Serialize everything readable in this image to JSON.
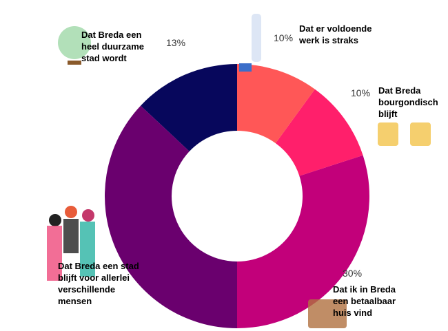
{
  "chart_data": {
    "type": "pie",
    "categories": [
      "Dat er voldoende werk is straks",
      "Dat Breda bourgondisch blijft",
      "Dat ik in Breda een betaalbaar huis vind",
      "Dat Breda een stad blijft voor allerlei verschillende mensen",
      "Dat Breda een heel duurzame stad wordt"
    ],
    "values": [
      10,
      10,
      30,
      37,
      13
    ],
    "value_labels": [
      "10%",
      "10%",
      "30%",
      null,
      "13%"
    ],
    "colors": [
      "#ff5757",
      "#ff1f6b",
      "#c2007a",
      "#6a006e",
      "#07075c"
    ],
    "donut": true
  }
}
